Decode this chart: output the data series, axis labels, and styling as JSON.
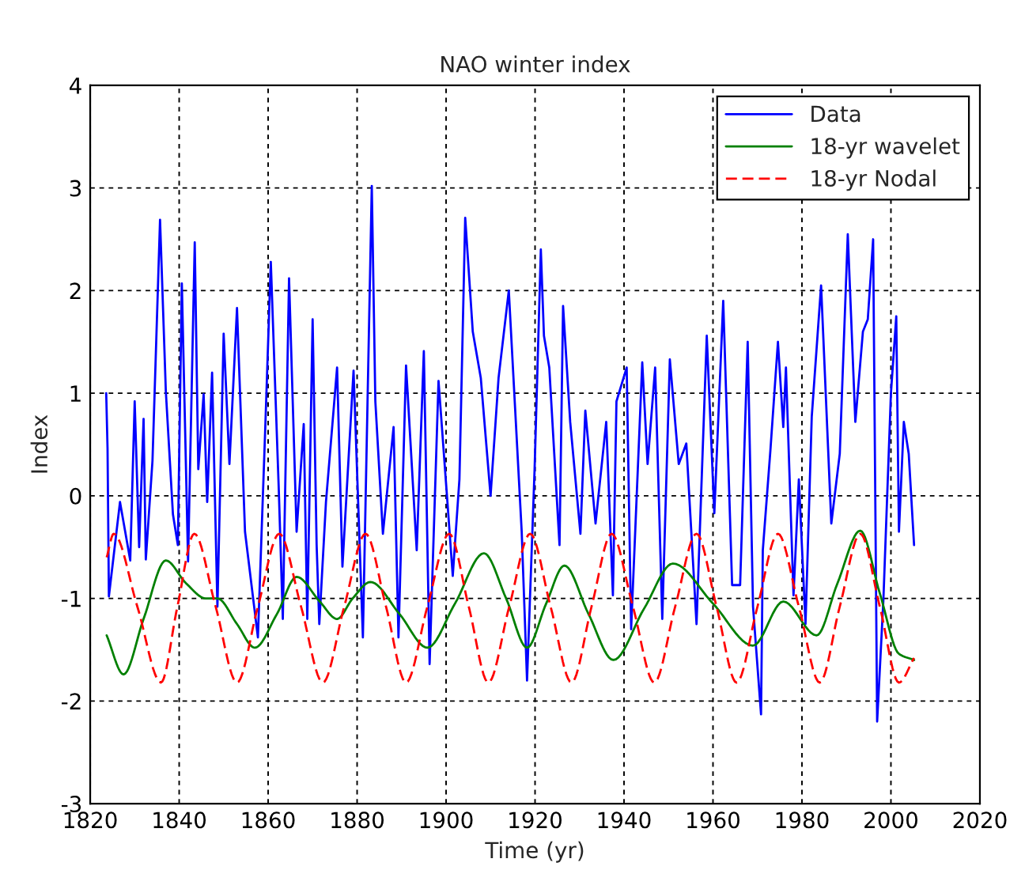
{
  "chart_data": {
    "type": "line",
    "title": "NAO winter index",
    "xlabel": "Time (yr)",
    "ylabel": "Index",
    "xlim": [
      1820,
      2020
    ],
    "xticks": [
      1820,
      1840,
      1860,
      1880,
      1900,
      1920,
      1940,
      1960,
      1980,
      2000,
      2020
    ],
    "ylim": [
      -3,
      4
    ],
    "yticks": [
      -3,
      -2,
      -1,
      0,
      1,
      2,
      3,
      4
    ],
    "grid": true,
    "legend": "top right",
    "series": [
      {
        "name": "Data",
        "color": "#0000ff",
        "line_style": "solid",
        "x": [
          1823.6,
          1823.9,
          1824.2,
          1826.7,
          1829,
          1830,
          1831,
          1832,
          1832.5,
          1834,
          1835.7,
          1837,
          1838.6,
          1839.7,
          1840.6,
          1842,
          1843.5,
          1844.3,
          1845.5,
          1846.3,
          1847.4,
          1848.6,
          1850,
          1851.3,
          1853,
          1854.8,
          1857.7,
          1859.4,
          1860.6,
          1862.4,
          1863.3,
          1864.7,
          1866.4,
          1868,
          1868.8,
          1870,
          1870.9,
          1871.5,
          1873,
          1875.5,
          1876.7,
          1879.2,
          1881.3,
          1883.3,
          1884.1,
          1885.8,
          1888.2,
          1889.3,
          1891,
          1893.4,
          1895,
          1896.3,
          1898.3,
          1900.3,
          1901.5,
          1903,
          1904.3,
          1906,
          1907.8,
          1910,
          1911.8,
          1914.1,
          1917,
          1918.2,
          1919.9,
          1921.3,
          1922,
          1923.2,
          1925.5,
          1926.3,
          1927.9,
          1930.2,
          1931.3,
          1933.6,
          1936,
          1937.5,
          1938.3,
          1940.6,
          1941.6,
          1944.1,
          1945.3,
          1947,
          1948.6,
          1950.3,
          1952.3,
          1954,
          1956.3,
          1958.6,
          1960.3,
          1962.3,
          1964.3,
          1966.1,
          1967.8,
          1969,
          1970.8,
          1971.2,
          1972.9,
          1974.6,
          1975.8,
          1976.4,
          1978.1,
          1979.3,
          1980.8,
          1982.2,
          1984.3,
          1986.6,
          1988.5,
          1990.3,
          1992,
          1993.7,
          1994.8,
          1996,
          1996.9,
          1998.3,
          2000,
          2001.2,
          2001.8,
          2002.9,
          2004,
          2005.2
        ],
        "values": [
          1.0,
          0.46,
          -0.98,
          -0.06,
          -0.63,
          0.92,
          -0.5,
          0.75,
          -0.62,
          0.34,
          2.69,
          1.02,
          -0.18,
          -0.48,
          2.07,
          -0.64,
          2.47,
          0.26,
          0.99,
          -0.06,
          1.2,
          -1.08,
          1.58,
          0.31,
          1.83,
          -0.35,
          -1.38,
          0.72,
          2.28,
          0.05,
          -1.2,
          2.12,
          -0.35,
          0.7,
          -1.2,
          1.72,
          -0.48,
          -1.25,
          -0.06,
          1.25,
          -0.69,
          1.22,
          -1.38,
          3.02,
          0.92,
          -0.37,
          0.67,
          -1.38,
          1.27,
          -0.53,
          1.41,
          -1.64,
          1.12,
          -0.06,
          -0.78,
          0.16,
          2.71,
          1.6,
          1.15,
          0.0,
          1.15,
          2.0,
          -0.35,
          -1.8,
          0.26,
          2.4,
          1.56,
          1.25,
          -0.48,
          1.85,
          0.72,
          -0.37,
          0.83,
          -0.27,
          0.72,
          -0.97,
          0.92,
          1.25,
          -1.3,
          1.3,
          0.31,
          1.25,
          -1.2,
          1.33,
          0.31,
          0.51,
          -1.25,
          1.56,
          -0.17,
          1.9,
          -0.87,
          -0.87,
          1.5,
          -1.08,
          -2.13,
          -0.53,
          0.44,
          1.5,
          0.67,
          1.25,
          -0.97,
          0.16,
          -1.25,
          0.77,
          2.05,
          -0.27,
          0.41,
          2.55,
          0.72,
          1.6,
          1.72,
          2.5,
          -2.2,
          -1.02,
          1.0,
          1.75,
          -0.35,
          0.72,
          0.41,
          -0.48
        ]
      },
      {
        "name": "18-yr wavelet",
        "color": "#008000",
        "line_style": "solid",
        "x": [
          1823.7,
          1827.5,
          1832,
          1837,
          1841.5,
          1846,
          1848.6,
          1853,
          1857,
          1862,
          1866.4,
          1871.6,
          1875.5,
          1879,
          1883,
          1889.5,
          1895.8,
          1902,
          1908.5,
          1913.5,
          1918.2,
          1922.5,
          1926.6,
          1932,
          1937.6,
          1944.5,
          1951,
          1960,
          1969,
          1975.8,
          1983.3,
          1988,
          1993.1,
          1997.5,
          2001.8,
          2005.2
        ],
        "values": [
          -1.36,
          -1.74,
          -1.2,
          -0.63,
          -0.85,
          -1.0,
          -1.0,
          -1.25,
          -1.48,
          -1.15,
          -0.79,
          -1.03,
          -1.2,
          -1.0,
          -0.84,
          -1.15,
          -1.48,
          -1.05,
          -0.56,
          -1.0,
          -1.48,
          -1.05,
          -0.68,
          -1.15,
          -1.6,
          -1.1,
          -0.66,
          -1.05,
          -1.46,
          -1.03,
          -1.36,
          -0.85,
          -0.34,
          -0.95,
          -1.54,
          -1.6
        ]
      },
      {
        "name": "18-yr Nodal",
        "color": "#ff0000",
        "line_style": "dashed",
        "x": [
          1823.7,
          1825.3,
          1830.6,
          1835.9,
          1839.6,
          1843.4,
          1848.2,
          1853,
          1857.7,
          1862.5,
          1867.4,
          1872.3,
          1877.1,
          1881.9,
          1886.5,
          1891,
          1895.8,
          1900.7,
          1905.1,
          1909.5,
          1914.2,
          1918.9,
          1923.5,
          1928.2,
          1932.7,
          1937.2,
          1942,
          1946.8,
          1951.5,
          1956.3,
          1960.8,
          1965.3,
          1970,
          1974.6,
          1979.3,
          1984,
          1988.5,
          1993.1,
          1997.5,
          2001.8,
          2005.2
        ],
        "values": [
          -0.6,
          -0.37,
          -1.08,
          -1.82,
          -1.08,
          -0.37,
          -1.08,
          -1.82,
          -1.08,
          -0.37,
          -1.08,
          -1.82,
          -1.08,
          -0.37,
          -1.08,
          -1.82,
          -1.08,
          -0.37,
          -1.08,
          -1.82,
          -1.08,
          -0.37,
          -1.08,
          -1.82,
          -1.08,
          -0.37,
          -1.08,
          -1.82,
          -1.08,
          -0.37,
          -1.08,
          -1.82,
          -1.08,
          -0.37,
          -1.08,
          -1.82,
          -1.08,
          -0.37,
          -1.08,
          -1.82,
          -1.58
        ]
      }
    ]
  }
}
